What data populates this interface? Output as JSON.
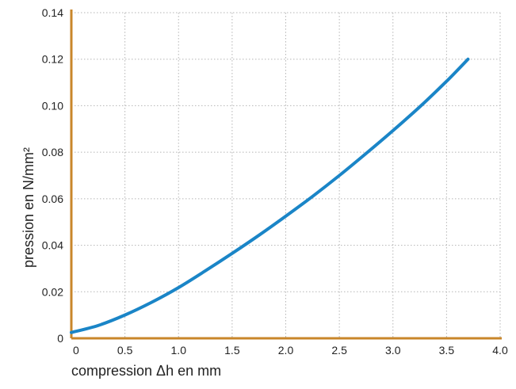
{
  "chart_data": {
    "type": "line",
    "xlabel": "compression Δh en mm",
    "ylabel": "pression en N/mm²",
    "xlim": [
      0,
      4.0
    ],
    "ylim": [
      0,
      0.14
    ],
    "x_ticks": [
      "0",
      "0.5",
      "1.0",
      "1.5",
      "2.0",
      "2.5",
      "3.0",
      "3.5",
      "4.0"
    ],
    "y_ticks": [
      "0",
      "0.02",
      "0.04",
      "0.06",
      "0.08",
      "0.10",
      "0.12",
      "0.14"
    ],
    "grid": true,
    "colors": {
      "line": "#1a85c7",
      "axis": "#c8862a",
      "grid": "#b5b5b5"
    },
    "series": [
      {
        "x": [
          0.0,
          0.25,
          0.5,
          0.75,
          1.0,
          1.25,
          1.5,
          1.75,
          2.0,
          2.25,
          2.5,
          2.75,
          3.0,
          3.25,
          3.5,
          3.7
        ],
        "y": [
          0.0025,
          0.0055,
          0.01,
          0.0155,
          0.0218,
          0.029,
          0.0365,
          0.0443,
          0.0525,
          0.061,
          0.07,
          0.0795,
          0.0893,
          0.0995,
          0.1105,
          0.12
        ]
      }
    ]
  }
}
